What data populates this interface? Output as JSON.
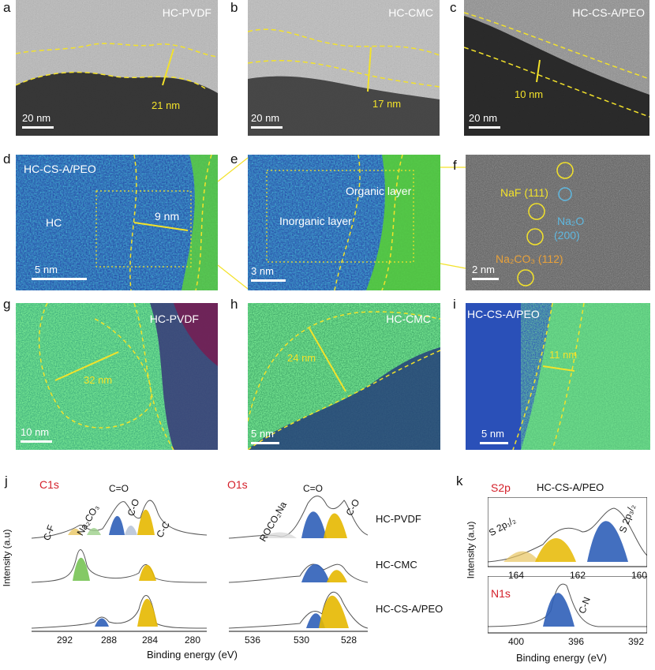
{
  "panel_letters": [
    "a",
    "b",
    "c",
    "d",
    "e",
    "f",
    "g",
    "h",
    "i",
    "j",
    "k"
  ],
  "tem": {
    "a": {
      "sample": "HC-PVDF",
      "thickness": "21 nm",
      "scale": "20 nm"
    },
    "b": {
      "sample": "HC-CMC",
      "thickness": "17 nm",
      "scale": "20 nm"
    },
    "c": {
      "sample": "HC-CS-A/PEO",
      "thickness": "10 nm",
      "scale": "20 nm"
    }
  },
  "mapping_row2": {
    "d": {
      "sample": "HC-CS-A/PEO",
      "region": "HC",
      "thickness": "9 nm",
      "scale": "5 nm"
    },
    "e": {
      "organic": "Organic layer",
      "inorganic": "Inorganic layer",
      "scale": "3 nm"
    },
    "f": {
      "naf": "NaF (111)",
      "na2o": "Na₂O",
      "na2o_plane": "(200)",
      "na2co3": "Na₂CO₃ (112)",
      "scale": "2 nm"
    }
  },
  "mapping_row3": {
    "g": {
      "sample": "HC-PVDF",
      "thickness": "32 nm",
      "scale": "10 nm"
    },
    "h": {
      "sample": "HC-CMC",
      "thickness": "24 nm",
      "scale": "5 nm"
    },
    "i": {
      "sample": "HC-CS-A/PEO",
      "thickness": "11 nm",
      "scale": "5 nm"
    }
  },
  "xps_j": {
    "c1s_title": "C1s",
    "o1s_title": "O1s",
    "ylabel": "Intensity (a.u)",
    "xlabel": "Binding energy (eV)",
    "c1s_peaks": [
      "C-F",
      "Na₂CO₃",
      "C=O",
      "C-O",
      "C-C"
    ],
    "o1s_peaks": [
      "ROCO₂Na",
      "C=O",
      "C-O"
    ],
    "c1s_ticks": [
      "292",
      "288",
      "284",
      "280"
    ],
    "o1s_ticks": [
      "536",
      "530",
      "528"
    ],
    "samples": [
      "HC-PVDF",
      "HC-CMC",
      "HC-CS-A/PEO"
    ]
  },
  "xps_k": {
    "s2p_title": "S2p",
    "n1s_title": "N1s",
    "sample": "HC-CS-A/PEO",
    "ylabel": "Intensity (a.u)",
    "xlabel": "Binding energy (eV)",
    "s2p_peaks": [
      "S 2p₁/₂",
      "S 2p₃/₂"
    ],
    "n1s_peak": "C-N",
    "s2p_ticks": [
      "164",
      "162",
      "160"
    ],
    "n1s_ticks": [
      "400",
      "396",
      "392"
    ]
  },
  "colors": {
    "annot": "#f3e22a",
    "blue_peak": "#2f5fb8",
    "yellow_peak": "#e6b800",
    "green_peak": "#6fbf4a",
    "red_label": "#d4202a"
  }
}
